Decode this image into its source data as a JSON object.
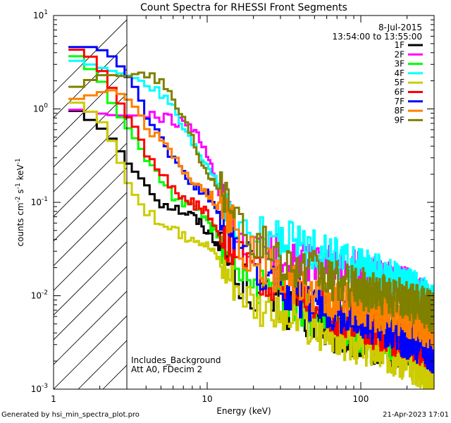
{
  "chart_data": {
    "type": "line",
    "title": "Count Spectra for RHESSI Front Segments",
    "xlabel": "Energy (keV)",
    "ylabel_base": "counts cm",
    "ylabel_exp1": "-2",
    "ylabel_mid": " s",
    "ylabel_exp2": "-1",
    "ylabel_end": " keV",
    "ylabel_exp3": "-1",
    "x_scale": "log",
    "y_scale": "log",
    "xlim": [
      1,
      300
    ],
    "ylim": [
      0.001,
      10
    ],
    "x_ticks": [
      {
        "value": 1,
        "label": "1"
      },
      {
        "value": 10,
        "label": "10"
      },
      {
        "value": 100,
        "label": "100"
      }
    ],
    "y_ticks": [
      {
        "value": 10,
        "base": "10",
        "exp": "1"
      },
      {
        "value": 1,
        "base": "10",
        "exp": "0"
      },
      {
        "value": 0.1,
        "base": "10",
        "exp": "-1"
      },
      {
        "value": 0.01,
        "base": "10",
        "exp": "-2"
      },
      {
        "value": 0.001,
        "base": "10",
        "exp": "-3"
      }
    ],
    "legend_header": [
      "8-Jul-2015",
      "13:54:00 to 13:55:00"
    ],
    "legend_position": "top-right",
    "shaded_region_keV": [
      1,
      3
    ],
    "annotation": [
      "Includes_Background",
      "Att A0, FDecim 2"
    ],
    "series": [
      {
        "name": "1F",
        "color": "#000000",
        "points": [
          [
            1.25,
            1.05
          ],
          [
            1.5,
            0.9
          ],
          [
            2,
            0.65
          ],
          [
            2.5,
            0.45
          ],
          [
            3,
            0.27
          ],
          [
            3.5,
            0.2
          ],
          [
            4,
            0.16
          ],
          [
            5,
            0.1
          ],
          [
            6,
            0.09
          ],
          [
            7,
            0.08
          ],
          [
            8,
            0.072
          ],
          [
            9,
            0.06
          ],
          [
            10,
            0.05
          ],
          [
            12,
            0.035
          ],
          [
            15,
            0.018
          ],
          [
            20,
            0.011
          ],
          [
            30,
            0.008
          ],
          [
            40,
            0.006
          ],
          [
            50,
            0.005
          ],
          [
            60,
            0.0045
          ],
          [
            70,
            0.004
          ],
          [
            80,
            0.0035
          ],
          [
            100,
            0.0032
          ],
          [
            120,
            0.003
          ],
          [
            150,
            0.0028
          ],
          [
            200,
            0.003
          ],
          [
            250,
            0.0025
          ],
          [
            290,
            0.0022
          ]
        ]
      },
      {
        "name": "2F",
        "color": "#ff00ff",
        "points": [
          [
            1.25,
            1.0
          ],
          [
            1.5,
            0.97
          ],
          [
            2,
            0.9
          ],
          [
            2.5,
            0.85
          ],
          [
            3,
            0.85
          ],
          [
            4,
            0.85
          ],
          [
            5,
            0.8
          ],
          [
            6,
            0.75
          ],
          [
            7,
            0.7
          ],
          [
            8,
            0.6
          ],
          [
            9,
            0.45
          ],
          [
            10,
            0.32
          ],
          [
            11,
            0.2
          ],
          [
            12,
            0.12
          ],
          [
            13,
            0.08
          ],
          [
            15,
            0.05
          ],
          [
            18,
            0.035
          ],
          [
            20,
            0.03
          ],
          [
            30,
            0.028
          ],
          [
            40,
            0.024
          ],
          [
            50,
            0.022
          ],
          [
            60,
            0.021
          ],
          [
            70,
            0.02
          ],
          [
            80,
            0.019
          ],
          [
            100,
            0.018
          ],
          [
            120,
            0.016
          ],
          [
            150,
            0.015
          ],
          [
            200,
            0.012
          ],
          [
            250,
            0.009
          ],
          [
            290,
            0.008
          ]
        ]
      },
      {
        "name": "3F",
        "color": "#00ff00",
        "points": [
          [
            1.25,
            4.0
          ],
          [
            1.5,
            3.5
          ],
          [
            1.8,
            2.5
          ],
          [
            2,
            2.2
          ],
          [
            2.5,
            1.0
          ],
          [
            3,
            0.65
          ],
          [
            3.5,
            0.45
          ],
          [
            4,
            0.3
          ],
          [
            5,
            0.18
          ],
          [
            6,
            0.12
          ],
          [
            7,
            0.1
          ],
          [
            8,
            0.085
          ],
          [
            9,
            0.075
          ],
          [
            10,
            0.065
          ],
          [
            12,
            0.04
          ],
          [
            15,
            0.025
          ],
          [
            20,
            0.014
          ],
          [
            30,
            0.009
          ],
          [
            40,
            0.007
          ],
          [
            50,
            0.006
          ],
          [
            60,
            0.005
          ],
          [
            70,
            0.0048
          ],
          [
            80,
            0.0045
          ],
          [
            100,
            0.004
          ],
          [
            120,
            0.0038
          ],
          [
            150,
            0.0035
          ],
          [
            200,
            0.003
          ],
          [
            250,
            0.0025
          ],
          [
            290,
            0.002
          ]
        ]
      },
      {
        "name": "4F",
        "color": "#00ffff",
        "points": [
          [
            1.25,
            3.4
          ],
          [
            1.5,
            3.2
          ],
          [
            2,
            2.8
          ],
          [
            2.5,
            2.5
          ],
          [
            3,
            2.3
          ],
          [
            3.5,
            2.1
          ],
          [
            4,
            1.9
          ],
          [
            5,
            1.4
          ],
          [
            6,
            1.0
          ],
          [
            7,
            0.6
          ],
          [
            8,
            0.4
          ],
          [
            9,
            0.32
          ],
          [
            10,
            0.25
          ],
          [
            11,
            0.2
          ],
          [
            12,
            0.15
          ],
          [
            13,
            0.09
          ],
          [
            15,
            0.05
          ],
          [
            18,
            0.045
          ],
          [
            20,
            0.045
          ],
          [
            30,
            0.04
          ],
          [
            40,
            0.035
          ],
          [
            50,
            0.03
          ],
          [
            60,
            0.027
          ],
          [
            70,
            0.025
          ],
          [
            80,
            0.022
          ],
          [
            100,
            0.02
          ],
          [
            120,
            0.018
          ],
          [
            150,
            0.015
          ],
          [
            200,
            0.012
          ],
          [
            250,
            0.01
          ],
          [
            290,
            0.008
          ]
        ]
      },
      {
        "name": "5F",
        "color": "#cccc00",
        "points": [
          [
            1.25,
            1.3
          ],
          [
            1.5,
            1.1
          ],
          [
            2,
            0.8
          ],
          [
            2.5,
            0.4
          ],
          [
            3,
            0.17
          ],
          [
            3.5,
            0.11
          ],
          [
            4,
            0.08
          ],
          [
            5,
            0.06
          ],
          [
            6,
            0.05
          ],
          [
            7,
            0.042
          ],
          [
            8,
            0.045
          ],
          [
            9,
            0.04
          ],
          [
            10,
            0.035
          ],
          [
            12,
            0.025
          ],
          [
            15,
            0.015
          ],
          [
            20,
            0.009
          ],
          [
            30,
            0.006
          ],
          [
            40,
            0.005
          ],
          [
            50,
            0.0042
          ],
          [
            60,
            0.004
          ],
          [
            70,
            0.0035
          ],
          [
            80,
            0.0033
          ],
          [
            100,
            0.003
          ],
          [
            120,
            0.0028
          ],
          [
            150,
            0.0025
          ],
          [
            200,
            0.002
          ],
          [
            250,
            0.0017
          ],
          [
            290,
            0.0012
          ]
        ]
      },
      {
        "name": "6F",
        "color": "#ff0000",
        "points": [
          [
            1.25,
            4.5
          ],
          [
            1.5,
            4.2
          ],
          [
            1.8,
            3.5
          ],
          [
            2,
            2.8
          ],
          [
            2.5,
            1.5
          ],
          [
            3,
            0.85
          ],
          [
            3.5,
            0.6
          ],
          [
            4,
            0.35
          ],
          [
            5,
            0.2
          ],
          [
            6,
            0.14
          ],
          [
            7,
            0.12
          ],
          [
            8,
            0.1
          ],
          [
            9,
            0.085
          ],
          [
            10,
            0.075
          ],
          [
            12,
            0.05
          ],
          [
            15,
            0.03
          ],
          [
            20,
            0.018
          ],
          [
            30,
            0.013
          ],
          [
            40,
            0.01
          ],
          [
            50,
            0.008
          ],
          [
            60,
            0.007
          ],
          [
            70,
            0.006
          ],
          [
            80,
            0.0055
          ],
          [
            100,
            0.005
          ],
          [
            120,
            0.0045
          ],
          [
            150,
            0.004
          ],
          [
            200,
            0.0035
          ],
          [
            250,
            0.003
          ],
          [
            290,
            0.0025
          ]
        ]
      },
      {
        "name": "7F",
        "color": "#0000ff",
        "points": [
          [
            1.25,
            4.6
          ],
          [
            1.5,
            4.6
          ],
          [
            1.8,
            4.6
          ],
          [
            2,
            4.4
          ],
          [
            2.5,
            3.5
          ],
          [
            3,
            2.3
          ],
          [
            3.5,
            1.6
          ],
          [
            4,
            0.9
          ],
          [
            5,
            0.5
          ],
          [
            6,
            0.3
          ],
          [
            7,
            0.2
          ],
          [
            8,
            0.16
          ],
          [
            9,
            0.14
          ],
          [
            10,
            0.12
          ],
          [
            12,
            0.08
          ],
          [
            15,
            0.05
          ],
          [
            18,
            0.025
          ],
          [
            20,
            0.02
          ],
          [
            30,
            0.013
          ],
          [
            40,
            0.01
          ],
          [
            50,
            0.008
          ],
          [
            60,
            0.007
          ],
          [
            70,
            0.0065
          ],
          [
            80,
            0.006
          ],
          [
            100,
            0.0055
          ],
          [
            120,
            0.005
          ],
          [
            150,
            0.0045
          ],
          [
            200,
            0.0035
          ],
          [
            250,
            0.003
          ],
          [
            290,
            0.0025
          ]
        ]
      },
      {
        "name": "8F",
        "color": "#ff8000",
        "points": [
          [
            1.25,
            1.25
          ],
          [
            1.5,
            1.3
          ],
          [
            2,
            1.5
          ],
          [
            2.5,
            1.6
          ],
          [
            3,
            1.3
          ],
          [
            3.5,
            1.0
          ],
          [
            4,
            0.7
          ],
          [
            5,
            0.45
          ],
          [
            6,
            0.3
          ],
          [
            7,
            0.22
          ],
          [
            8,
            0.18
          ],
          [
            9,
            0.15
          ],
          [
            10,
            0.13
          ],
          [
            12,
            0.09
          ],
          [
            15,
            0.06
          ],
          [
            18,
            0.03
          ],
          [
            20,
            0.025
          ],
          [
            30,
            0.016
          ],
          [
            40,
            0.013
          ],
          [
            50,
            0.011
          ],
          [
            60,
            0.01
          ],
          [
            70,
            0.009
          ],
          [
            80,
            0.0085
          ],
          [
            100,
            0.008
          ],
          [
            120,
            0.007
          ],
          [
            150,
            0.0065
          ],
          [
            200,
            0.006
          ],
          [
            250,
            0.005
          ],
          [
            290,
            0.0045
          ]
        ]
      },
      {
        "name": "9F",
        "color": "#808000",
        "points": [
          [
            1.25,
            1.6
          ],
          [
            1.5,
            1.8
          ],
          [
            2,
            2.3
          ],
          [
            2.5,
            2.3
          ],
          [
            3,
            2.2
          ],
          [
            3.5,
            2.4
          ],
          [
            4,
            2.5
          ],
          [
            5,
            2.0
          ],
          [
            6,
            1.3
          ],
          [
            7,
            0.8
          ],
          [
            8,
            0.5
          ],
          [
            9,
            0.3
          ],
          [
            10,
            0.22
          ],
          [
            12,
            0.15
          ],
          [
            15,
            0.1
          ],
          [
            18,
            0.05
          ],
          [
            20,
            0.04
          ],
          [
            30,
            0.025
          ],
          [
            40,
            0.02
          ],
          [
            50,
            0.018
          ],
          [
            60,
            0.015
          ],
          [
            70,
            0.014
          ],
          [
            80,
            0.013
          ],
          [
            100,
            0.012
          ],
          [
            120,
            0.011
          ],
          [
            150,
            0.01
          ],
          [
            200,
            0.009
          ],
          [
            250,
            0.008
          ],
          [
            290,
            0.0065
          ]
        ]
      }
    ]
  },
  "footer": {
    "generated_by": "Generated by hsi_min_spectra_plot.pro",
    "timestamp": "21-Apr-2023 17:01"
  }
}
